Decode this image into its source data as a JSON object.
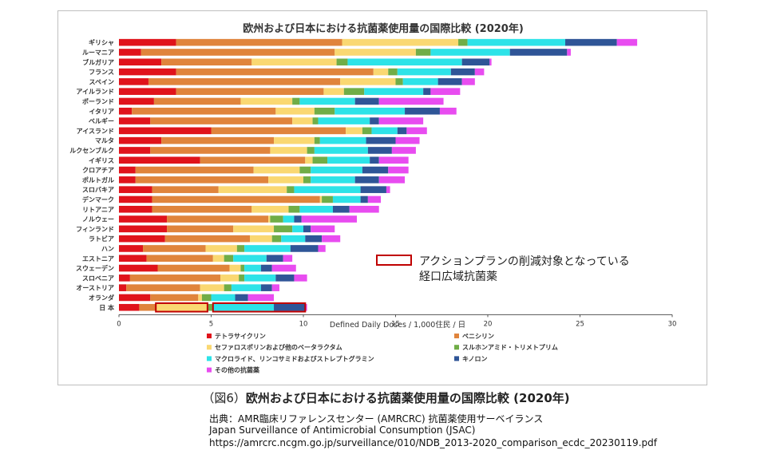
{
  "chart_data": {
    "type": "bar",
    "orientation": "horizontal",
    "stacked": true,
    "title": "欧州および日本における抗菌薬使用量の国際比較 (2020年)",
    "xlabel": "Defined Daily Doses / 1,000住民 / 日",
    "xlim": [
      0,
      30
    ],
    "xticks": [
      0,
      5,
      10,
      15,
      20,
      25,
      30
    ],
    "grid": false,
    "legend_placement": "bottom-left",
    "categories": [
      "ギリシャ",
      "ルーマニア",
      "ブルガリア",
      "フランス",
      "スペイン",
      "アイルランド",
      "ポーランド",
      "イタリア",
      "ベルギー",
      "アイスランド",
      "マルタ",
      "ルクセンブルク",
      "イギリス",
      "クロアチア",
      "ポルトガル",
      "スロバキア",
      "デンマーク",
      "リトアニア",
      "ノルウェー",
      "フィンランド",
      "ラトビア",
      "ハン",
      "エストニア",
      "スウェーデン",
      "スロベニア",
      "オーストリア",
      "オランダ",
      "日 本"
    ],
    "series": [
      {
        "name": "テトラサイクリン",
        "color": "#e0131b",
        "values": [
          3.1,
          1.2,
          2.3,
          3.1,
          1.6,
          3.1,
          1.9,
          0.7,
          1.7,
          5.0,
          2.3,
          1.7,
          4.4,
          0.9,
          0.9,
          1.8,
          1.8,
          1.8,
          2.6,
          2.6,
          2.5,
          1.3,
          1.5,
          2.1,
          0.6,
          0.4,
          1.7,
          1.1
        ]
      },
      {
        "name": "ペニシリン",
        "color": "#e0843c",
        "values": [
          9.0,
          10.5,
          4.9,
          10.7,
          10.4,
          8.0,
          4.7,
          7.8,
          7.7,
          7.3,
          6.1,
          6.5,
          5.7,
          6.4,
          7.2,
          3.6,
          9.1,
          5.4,
          5.5,
          3.6,
          4.6,
          3.4,
          3.6,
          3.9,
          4.9,
          4.0,
          2.6,
          0.9
        ]
      },
      {
        "name": "セファロスポリンおよび他のベータラクタム",
        "color": "#fad872",
        "values": [
          6.3,
          4.4,
          4.6,
          0.8,
          3.0,
          1.1,
          2.8,
          2.1,
          1.1,
          0.9,
          2.2,
          2.0,
          0.4,
          2.5,
          1.9,
          3.7,
          0.1,
          2.0,
          0.1,
          2.2,
          1.2,
          1.7,
          0.6,
          0.6,
          1.0,
          1.3,
          0.2,
          2.8
        ]
      },
      {
        "name": "スルホンアミド・トリメトプリム",
        "color": "#70ad47",
        "values": [
          0.5,
          0.8,
          0.6,
          0.5,
          0.4,
          1.1,
          0.4,
          1.1,
          0.3,
          0.5,
          0.3,
          0.4,
          0.8,
          0.6,
          0.4,
          0.4,
          0.6,
          0.6,
          0.7,
          1.0,
          0.5,
          0.4,
          0.5,
          0.2,
          0.3,
          0.4,
          0.5,
          0.3
        ]
      },
      {
        "name": "マクロライド、リンコサミドおよびストレプトグラミン",
        "color": "#2de3e8",
        "values": [
          5.3,
          4.3,
          6.2,
          2.9,
          1.9,
          3.2,
          3.0,
          3.8,
          2.8,
          1.4,
          2.5,
          2.9,
          2.3,
          2.8,
          2.4,
          3.6,
          1.5,
          1.8,
          0.6,
          0.6,
          1.3,
          2.5,
          1.8,
          0.9,
          1.7,
          1.6,
          1.3,
          3.3
        ]
      },
      {
        "name": "キノロン",
        "color": "#2f5597",
        "values": [
          2.8,
          3.1,
          1.5,
          1.3,
          1.3,
          0.4,
          1.3,
          1.9,
          0.5,
          0.5,
          1.6,
          1.3,
          0.5,
          1.4,
          1.3,
          1.4,
          0.4,
          0.9,
          0.4,
          0.4,
          0.9,
          1.5,
          0.9,
          0.6,
          1.0,
          0.6,
          0.7,
          1.7
        ]
      },
      {
        "name": "その他の抗菌薬",
        "color": "#e84cf0",
        "values": [
          1.1,
          0.2,
          0.1,
          0.5,
          0.7,
          1.6,
          3.5,
          0.9,
          2.4,
          1.1,
          1.3,
          1.3,
          1.6,
          1.1,
          1.4,
          0.2,
          0.7,
          1.6,
          3.0,
          1.3,
          1.0,
          0.4,
          0.5,
          1.3,
          0.7,
          0.4,
          1.4,
          0.1
        ]
      }
    ],
    "annotation": {
      "text_line1": "アクションプランの削減対象となっている",
      "text_line2": "経口広域抗菌薬",
      "highlight_color": "#c00000"
    }
  },
  "caption": {
    "number": "（図6）",
    "title": "欧州および日本における抗菌薬使用量の国際比較 (2020年)"
  },
  "source": {
    "line1": "出典：AMR臨床リファレンスセンター (AMRCRC) 抗菌薬使用サーベイランス",
    "line2": "Japan Surveillance of Antimicrobial Consumption (JSAC)",
    "line3": "https://amrcrc.ncgm.go.jp/surveillance/010/NDB_2013-2020_comparison_ecdc_20230119.pdf"
  }
}
